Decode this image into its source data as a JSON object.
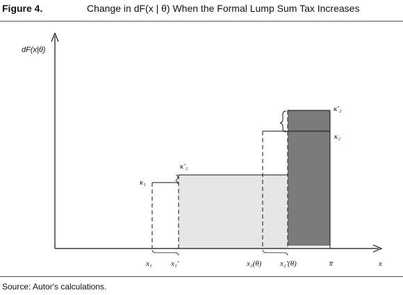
{
  "figure": {
    "label": "Figure 4.",
    "title": "Change in dF(x | θ) When the Formal Lump Sum Tax Increases",
    "source": "Source: Autor's calculations."
  },
  "diagram": {
    "y_axis_label": "dF(x|θ)",
    "x_axis_label": "x",
    "x_ticks": [
      "x₁",
      "x₁'",
      "x₂(θ)",
      "x₂'(θ)",
      "x̅"
    ],
    "levels": [
      "κ₁",
      "κ'₁",
      "κ₂",
      "κ'₂"
    ],
    "colors": {
      "light_fill": "#e6e6e6",
      "dark_fill": "#7a7a7a",
      "line": "#111111"
    }
  }
}
